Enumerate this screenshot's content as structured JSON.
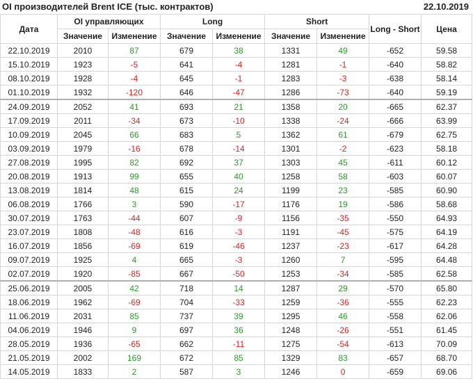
{
  "header": {
    "title": "OI производителей Brent ICE (тыс. контрактов)",
    "date": "22.10.2019"
  },
  "table": {
    "columns": [
      "Дата",
      "OI управляющих",
      "Long",
      "Short",
      "Long - Short",
      "Цена"
    ],
    "subheaders": [
      "Значение",
      "Изменение",
      "Значение",
      "Изменение",
      "Значение",
      "Изменение"
    ],
    "rows": [
      [
        "22.10.2019",
        "2010",
        "87",
        "679",
        "38",
        "1331",
        "49",
        "-652",
        "59.58"
      ],
      [
        "15.10.2019",
        "1923",
        "-5",
        "641",
        "-4",
        "1281",
        "-1",
        "-640",
        "58.82"
      ],
      [
        "08.10.2019",
        "1928",
        "-4",
        "645",
        "-1",
        "1283",
        "-3",
        "-638",
        "58.14"
      ],
      [
        "01.10.2019",
        "1932",
        "-120",
        "646",
        "-47",
        "1286",
        "-73",
        "-640",
        "59.19"
      ],
      [
        "24.09.2019",
        "2052",
        "41",
        "693",
        "21",
        "1358",
        "20",
        "-665",
        "62.37"
      ],
      [
        "17.09.2019",
        "2011",
        "-34",
        "673",
        "-10",
        "1338",
        "-24",
        "-666",
        "63.99"
      ],
      [
        "10.09.2019",
        "2045",
        "66",
        "683",
        "5",
        "1362",
        "61",
        "-679",
        "62.75"
      ],
      [
        "03.09.2019",
        "1979",
        "-16",
        "678",
        "-14",
        "1301",
        "-2",
        "-623",
        "58.18"
      ],
      [
        "27.08.2019",
        "1995",
        "82",
        "692",
        "37",
        "1303",
        "45",
        "-611",
        "60.12"
      ],
      [
        "20.08.2019",
        "1913",
        "99",
        "655",
        "40",
        "1258",
        "58",
        "-603",
        "60.07"
      ],
      [
        "13.08.2019",
        "1814",
        "48",
        "615",
        "24",
        "1199",
        "23",
        "-585",
        "60.90"
      ],
      [
        "06.08.2019",
        "1766",
        "3",
        "590",
        "-17",
        "1176",
        "19",
        "-586",
        "58.68"
      ],
      [
        "30.07.2019",
        "1763",
        "-44",
        "607",
        "-9",
        "1156",
        "-35",
        "-550",
        "64.93"
      ],
      [
        "23.07.2019",
        "1808",
        "-48",
        "616",
        "-3",
        "1191",
        "-45",
        "-575",
        "64.19"
      ],
      [
        "16.07.2019",
        "1856",
        "-69",
        "619",
        "-46",
        "1237",
        "-23",
        "-617",
        "64.28"
      ],
      [
        "09.07.2019",
        "1925",
        "4",
        "665",
        "-3",
        "1260",
        "7",
        "-595",
        "64.48"
      ],
      [
        "02.07.2019",
        "1920",
        "-85",
        "667",
        "-50",
        "1253",
        "-34",
        "-585",
        "62.58"
      ],
      [
        "25.06.2019",
        "2005",
        "42",
        "718",
        "14",
        "1287",
        "29",
        "-570",
        "65.80"
      ],
      [
        "18.06.2019",
        "1962",
        "-69",
        "704",
        "-33",
        "1259",
        "-36",
        "-555",
        "62.23"
      ],
      [
        "11.06.2019",
        "2031",
        "85",
        "737",
        "39",
        "1295",
        "46",
        "-558",
        "62.06"
      ],
      [
        "04.06.2019",
        "1946",
        "9",
        "697",
        "36",
        "1248",
        "-26",
        "-551",
        "61.45"
      ],
      [
        "28.05.2019",
        "1936",
        "-65",
        "662",
        "-11",
        "1275",
        "-54",
        "-613",
        "70.09"
      ],
      [
        "21.05.2019",
        "2002",
        "169",
        "672",
        "85",
        "1329",
        "83",
        "-657",
        "68.70"
      ],
      [
        "14.05.2019",
        "1833",
        "2",
        "587",
        "3",
        "1246",
        "0",
        "-659",
        "69.06"
      ]
    ]
  }
}
